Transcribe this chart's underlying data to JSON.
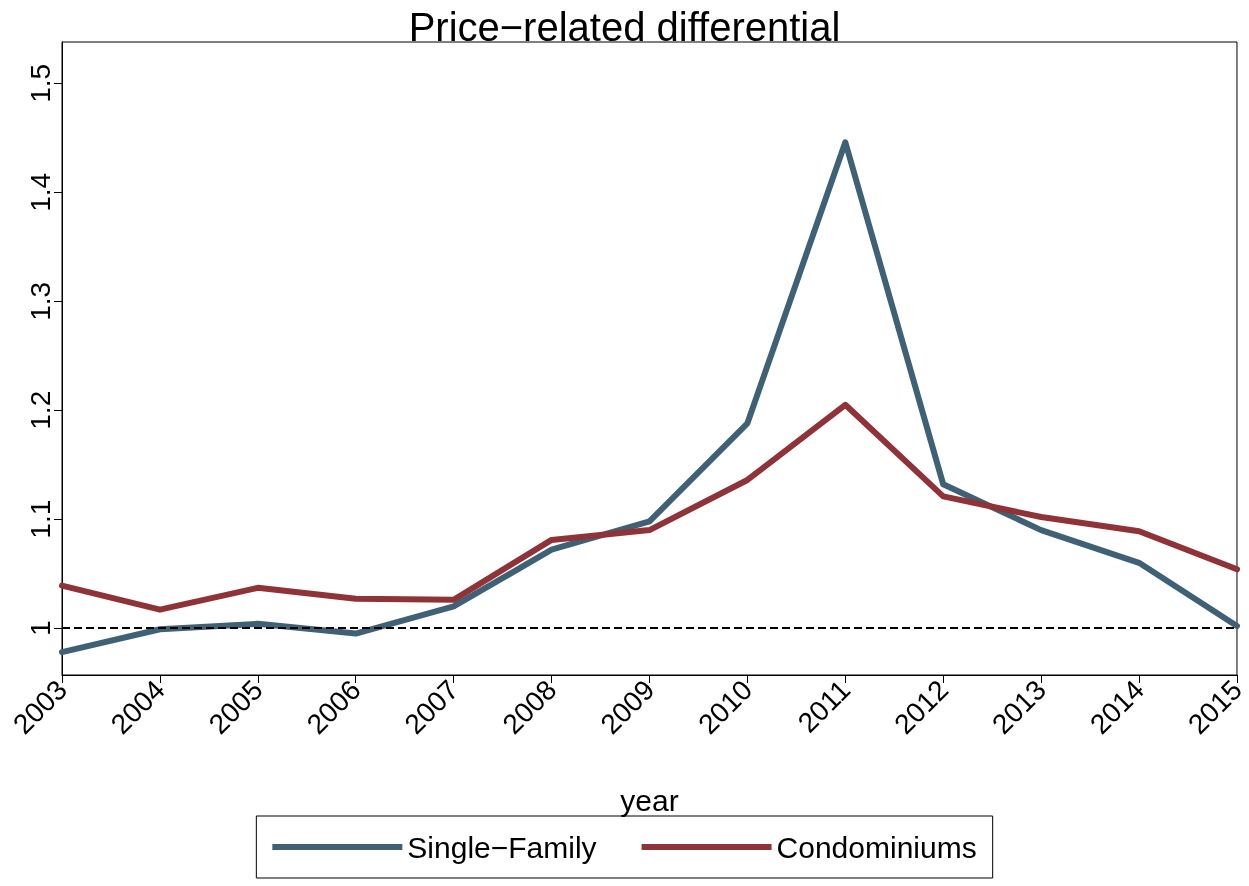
{
  "chart_data": {
    "type": "line",
    "title": "Price−related differential",
    "xlabel": "year",
    "categories": [
      "2003",
      "2004",
      "2005",
      "2006",
      "2007",
      "2008",
      "2009",
      "2010",
      "2011",
      "2012",
      "2013",
      "2014",
      "2015"
    ],
    "series": [
      {
        "name": "Single−Family",
        "color": "#3e6176",
        "values": [
          0.978,
          0.999,
          1.004,
          0.995,
          1.02,
          1.072,
          1.098,
          1.188,
          1.446,
          1.132,
          1.09,
          1.06,
          1.002
        ]
      },
      {
        "name": "Condominiums",
        "color": "#8f3338",
        "values": [
          1.039,
          1.017,
          1.037,
          1.027,
          1.026,
          1.081,
          1.09,
          1.136,
          1.205,
          1.121,
          1.102,
          1.089,
          1.054
        ]
      }
    ],
    "ylim": [
      0.957,
      1.538
    ],
    "yticks": [
      1,
      1.1,
      1.2,
      1.3,
      1.4,
      1.5
    ],
    "ref_lines": [
      {
        "axis": "y",
        "value": 1,
        "color": "#000000",
        "line_style": "dashed"
      }
    ],
    "grid": false,
    "legend": "bottom",
    "marker": "none",
    "line_style": "solid"
  }
}
